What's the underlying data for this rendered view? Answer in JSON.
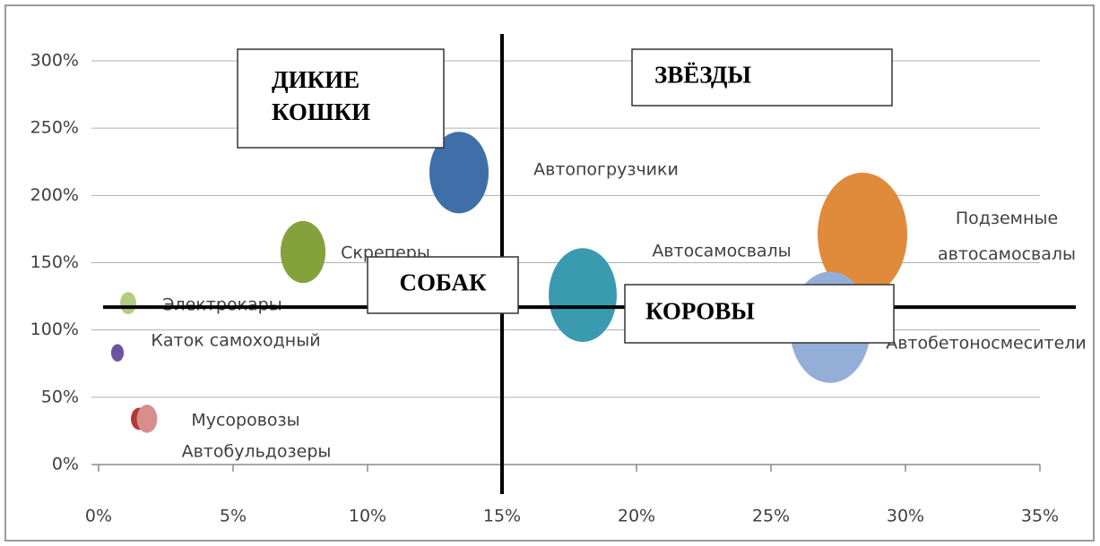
{
  "chart_data": {
    "type": "bubble",
    "xlim": [
      0,
      35
    ],
    "ylim": [
      0,
      300
    ],
    "xticks": [
      {
        "value": 0,
        "label": "0%"
      },
      {
        "value": 5,
        "label": "5%"
      },
      {
        "value": 10,
        "label": "10%"
      },
      {
        "value": 15,
        "label": "15%"
      },
      {
        "value": 20,
        "label": "20%"
      },
      {
        "value": 25,
        "label": "25%"
      },
      {
        "value": 30,
        "label": "30%"
      },
      {
        "value": 35,
        "label": "35%"
      }
    ],
    "yticks": [
      {
        "value": 0,
        "label": "0%"
      },
      {
        "value": 50,
        "label": "50%"
      },
      {
        "value": 100,
        "label": "100%"
      },
      {
        "value": 150,
        "label": "150%"
      },
      {
        "value": 200,
        "label": "200%"
      },
      {
        "value": 250,
        "label": "250%"
      },
      {
        "value": 300,
        "label": "300%"
      }
    ],
    "grid": true,
    "divider_x": 15,
    "divider_y": 117,
    "series": [
      {
        "name": "Автопогрузчики",
        "color": "#3f6fa8",
        "x": 13.4,
        "y": 217,
        "size": 10.9
      },
      {
        "name": "Скреперы",
        "color": "#84a23c",
        "x": 7.6,
        "y": 158,
        "size": 6.3
      },
      {
        "name": "Электрокары",
        "color": "#b3cc80",
        "x": 1.1,
        "y": 120,
        "size": 0.8
      },
      {
        "name": "Каток самоходный",
        "color": "#6e52a0",
        "x": 0.7,
        "y": 83,
        "size": 0.5
      },
      {
        "name": "Мусоровозы",
        "color": "#b23a36",
        "x": 1.5,
        "y": 34,
        "size": 0.8
      },
      {
        "name": "Автобульдозеры",
        "color": "#d98e8e",
        "x": 1.8,
        "y": 34,
        "size": 1.3
      },
      {
        "name": "Автосамосвалы",
        "color": "#3a9aaf",
        "x": 18.0,
        "y": 126,
        "size": 14.4
      },
      {
        "name": "Подземные автосамосвалы",
        "color": "#e08a3c",
        "x": 28.4,
        "y": 171,
        "size": 25
      },
      {
        "name": "Автобетоносмесители",
        "color": "#95aed8",
        "x": 27.2,
        "y": 102,
        "size": 20.3
      }
    ],
    "quadrants": [
      {
        "label": "ДИКИЕ КОШКИ"
      },
      {
        "label": "ЗВЁЗДЫ"
      },
      {
        "label": "СОБАК"
      },
      {
        "label": "КОРОВЫ"
      }
    ]
  }
}
